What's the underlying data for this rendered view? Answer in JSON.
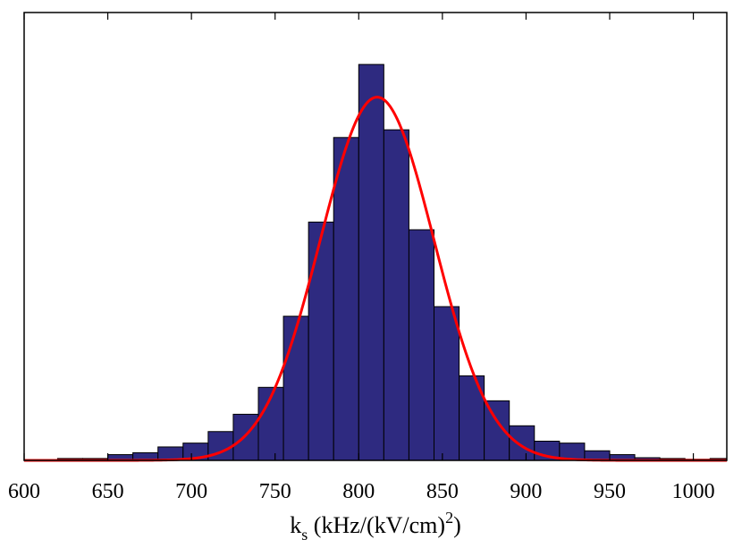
{
  "chart_data": {
    "type": "bar",
    "subtype": "histogram-with-fit",
    "title": "",
    "xlabel": {
      "main": "k",
      "subscript": "s",
      "unit_open": " (kHz/(kV/cm)",
      "superscript": "2",
      "unit_close": ")"
    },
    "ylabel": "",
    "xlim": [
      600,
      1020
    ],
    "ylim": [
      0,
      100
    ],
    "xticks": [
      600,
      650,
      700,
      750,
      800,
      850,
      900,
      950,
      1000
    ],
    "y_ticks_labeled": false,
    "grid": false,
    "legend": "none",
    "bin_width": 15,
    "bins": [
      {
        "start": 620,
        "value": 0.5
      },
      {
        "start": 635,
        "value": 0.5
      },
      {
        "start": 650,
        "value": 1.5
      },
      {
        "start": 665,
        "value": 2.0
      },
      {
        "start": 680,
        "value": 3.5
      },
      {
        "start": 695,
        "value": 4.5
      },
      {
        "start": 710,
        "value": 7.5
      },
      {
        "start": 725,
        "value": 12.0
      },
      {
        "start": 740,
        "value": 19.0
      },
      {
        "start": 755,
        "value": 37.5
      },
      {
        "start": 770,
        "value": 62.0
      },
      {
        "start": 785,
        "value": 84.0
      },
      {
        "start": 800,
        "value": 103.0
      },
      {
        "start": 815,
        "value": 86.0
      },
      {
        "start": 830,
        "value": 60.0
      },
      {
        "start": 845,
        "value": 40.0
      },
      {
        "start": 860,
        "value": 22.0
      },
      {
        "start": 875,
        "value": 15.5
      },
      {
        "start": 890,
        "value": 9.0
      },
      {
        "start": 905,
        "value": 5.0
      },
      {
        "start": 920,
        "value": 4.5
      },
      {
        "start": 935,
        "value": 2.5
      },
      {
        "start": 950,
        "value": 1.5
      },
      {
        "start": 965,
        "value": 0.7
      },
      {
        "start": 980,
        "value": 0.5
      },
      {
        "start": 995,
        "value": 0.3
      },
      {
        "start": 1010,
        "value": 0.5
      }
    ],
    "fit": {
      "type": "gaussian",
      "mean": 811,
      "sigma": 34,
      "peak": 94.5
    },
    "colors": {
      "bar_fill": "#2e2a80",
      "bar_edge": "#000000",
      "fit_line": "#ff0000",
      "axes": "#000000"
    }
  }
}
